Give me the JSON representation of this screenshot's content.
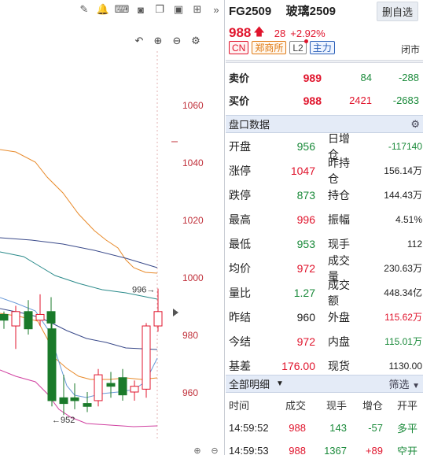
{
  "toolbar": {
    "icons": [
      "edit-icon",
      "bell-icon",
      "gamepad-icon",
      "camera-icon",
      "copy-icon",
      "screen-icon",
      "grid-icon",
      "expand-icon"
    ],
    "glyphs": [
      "✎",
      "🔔",
      "⌨",
      "◙",
      "❐",
      "▣",
      "⊞",
      "»"
    ],
    "zoom_glyphs": [
      "↶",
      "⊕",
      "⊖",
      "⚙"
    ]
  },
  "chart_data": {
    "type": "candlestick",
    "y_ticks": [
      "1060",
      "1040",
      "1020",
      "1000",
      "980",
      "960"
    ],
    "ylim": [
      952,
      1076
    ],
    "annotations": {
      "high_label": "996→",
      "low_label": "←952"
    },
    "candles": [
      {
        "o": 987,
        "h": 988,
        "l": 982,
        "c": 985
      },
      {
        "o": 983,
        "h": 990,
        "l": 975,
        "c": 988
      },
      {
        "o": 988,
        "h": 992,
        "l": 980,
        "c": 982
      },
      {
        "o": 985,
        "h": 994,
        "l": 983,
        "c": 987
      },
      {
        "o": 988,
        "h": 993,
        "l": 982,
        "c": 984
      },
      {
        "o": 982,
        "h": 985,
        "l": 955,
        "c": 957
      },
      {
        "o": 958,
        "h": 966,
        "l": 952,
        "c": 956
      },
      {
        "o": 958,
        "h": 963,
        "l": 954,
        "c": 957
      },
      {
        "o": 956,
        "h": 960,
        "l": 953,
        "c": 955
      },
      {
        "o": 957,
        "h": 968,
        "l": 955,
        "c": 966
      },
      {
        "o": 963,
        "h": 967,
        "l": 958,
        "c": 962
      },
      {
        "o": 965,
        "h": 968,
        "l": 957,
        "c": 959
      },
      {
        "o": 960,
        "h": 964,
        "l": 957,
        "c": 962
      },
      {
        "o": 961,
        "h": 984,
        "l": 958,
        "c": 983
      },
      {
        "o": 983,
        "h": 996,
        "l": 981,
        "c": 988
      }
    ],
    "colors": {
      "up": "#e0142c",
      "down": "#1a7a2a",
      "ma_orange": "#e88a2a",
      "ma_teal": "#2a8a8a",
      "ma_navy": "#3a4a8a",
      "ma_blue": "#6a9ad8",
      "ma_pink": "#d040a0"
    }
  },
  "quote": {
    "code": "FG2509",
    "name": "玻璃2509",
    "delete_label": "删自选",
    "price": "988",
    "change": "28",
    "change_pct": "+2.92%",
    "tags": [
      "CN",
      "郑商所",
      "L2",
      "主力"
    ],
    "status": "闭市"
  },
  "orderbook": {
    "ask_label": "卖价",
    "ask_price": "989",
    "ask_vol": "84",
    "ask_delta": "-288",
    "bid_label": "买价",
    "bid_price": "988",
    "bid_vol": "2421",
    "bid_delta": "-2683"
  },
  "panel_title": "盘口数据",
  "stats": [
    {
      "k1": "开盘",
      "v1": "956",
      "c1": "green",
      "k2": "日增仓",
      "v2": "-117140",
      "c2": "green"
    },
    {
      "k1": "涨停",
      "v1": "1047",
      "c1": "red",
      "k2": "昨持仓",
      "v2": "156.14万",
      "c2": "dark"
    },
    {
      "k1": "跌停",
      "v1": "873",
      "c1": "green",
      "k2": "持仓",
      "v2": "144.43万",
      "c2": "dark"
    },
    {
      "k1": "最高",
      "v1": "996",
      "c1": "red",
      "k2": "振幅",
      "v2": "4.51%",
      "c2": "dark"
    },
    {
      "k1": "最低",
      "v1": "953",
      "c1": "green",
      "k2": "现手",
      "v2": "112",
      "c2": "dark"
    },
    {
      "k1": "均价",
      "v1": "972",
      "c1": "red",
      "k2": "成交量",
      "v2": "230.63万",
      "c2": "dark"
    },
    {
      "k1": "量比",
      "v1": "1.27",
      "c1": "green",
      "k2": "成交额",
      "v2": "448.34亿",
      "c2": "dark"
    },
    {
      "k1": "昨结",
      "v1": "960",
      "c1": "dark",
      "k2": "外盘",
      "v2": "115.62万",
      "c2": "red"
    },
    {
      "k1": "今结",
      "v1": "972",
      "c1": "red",
      "k2": "内盘",
      "v2": "115.01万",
      "c2": "green"
    },
    {
      "k1": "基差",
      "v1": "176.00",
      "c1": "red",
      "k2": "现货",
      "v2": "1130.00",
      "c2": "dark"
    }
  ],
  "trades_title": "全部明细",
  "trades_filter": "筛选",
  "trades_headers": [
    "时间",
    "成交",
    "现手",
    "增仓",
    "开平"
  ],
  "trades": [
    {
      "time": "14:59:52",
      "price": "988",
      "vol": "143",
      "oi": "-57",
      "type": "多平"
    },
    {
      "time": "14:59:53",
      "price": "988",
      "vol": "1367",
      "oi": "+89",
      "type": "空开"
    }
  ]
}
